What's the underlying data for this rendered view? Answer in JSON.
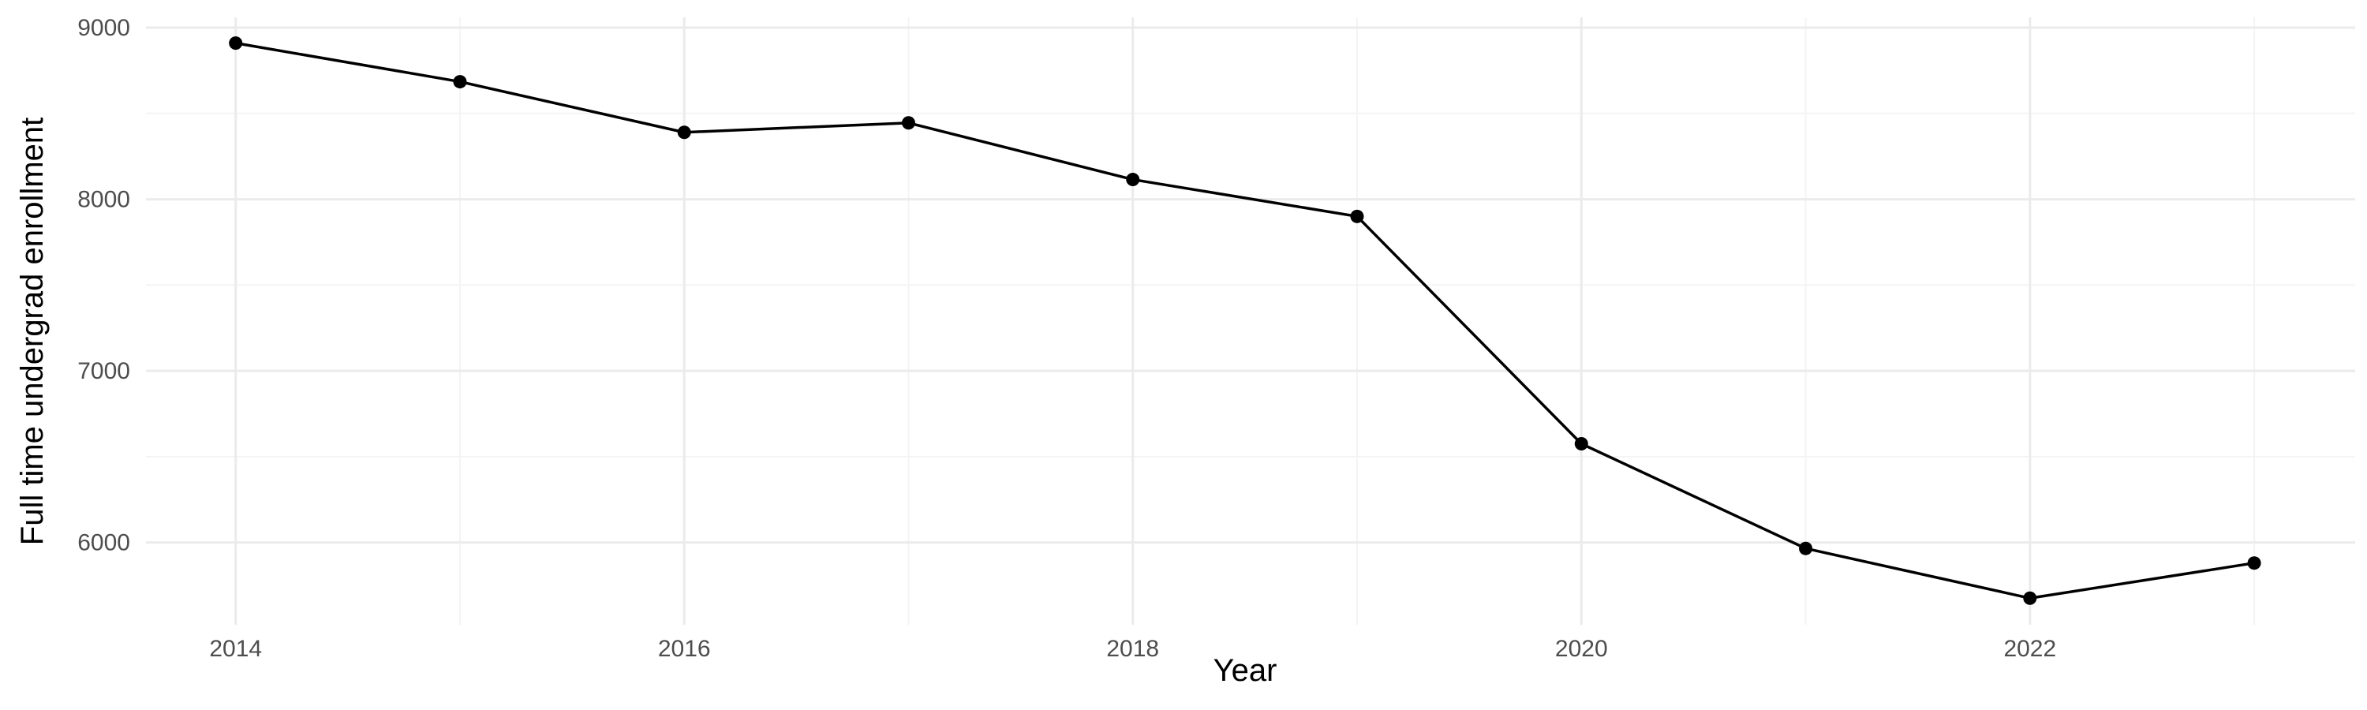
{
  "chart_data": {
    "type": "line",
    "title": "",
    "xlabel": "Year",
    "ylabel": "Full time undergrad enrollment",
    "x": [
      2014,
      2015,
      2016,
      2017,
      2018,
      2019,
      2020,
      2021,
      2022,
      2023
    ],
    "series": [
      {
        "values": [
          8910,
          8685,
          8390,
          8445,
          8115,
          7900,
          6575,
          5965,
          5675,
          5880
        ]
      }
    ],
    "xlim": [
      2013.6,
      2023.45
    ],
    "ylim": [
      5520,
      9060
    ],
    "x_ticks": [
      2014,
      2016,
      2018,
      2020,
      2022
    ],
    "x_tick_labels": [
      "2014",
      "2016",
      "2018",
      "2020",
      "2022"
    ],
    "y_ticks": [
      6000,
      7000,
      8000,
      9000
    ],
    "y_tick_labels": [
      "6000",
      "7000",
      "8000",
      "9000"
    ],
    "grid": true,
    "legend": "none",
    "colors": {
      "line": "#000000",
      "point": "#000000",
      "grid_major": "#ebebeb",
      "grid_minor": "#f4f4f4"
    }
  }
}
